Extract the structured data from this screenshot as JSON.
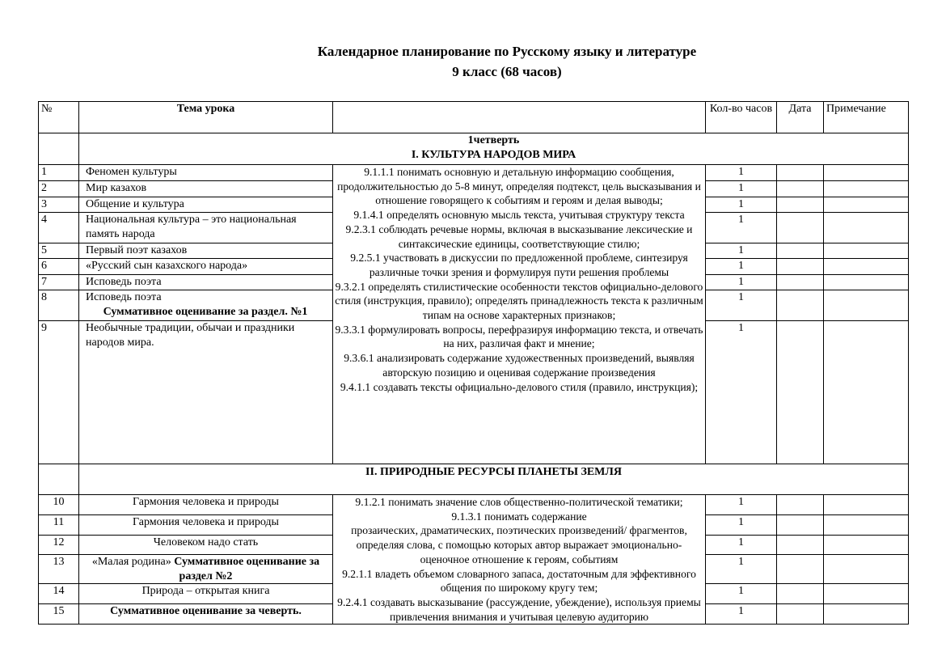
{
  "title_line1": "Календарное планирование по Русскому языку и литературе",
  "title_line2": "9 класс (68 часов)",
  "headers": {
    "num": "№",
    "topic": "Тема урока",
    "objectives": "",
    "hours": "Кол-во часов",
    "date": "Дата",
    "note": "Примечание"
  },
  "quarter1": {
    "label": "1четверть",
    "section": "I. КУЛЬТУРА НАРОДОВ МИРА"
  },
  "section2": "II. ПРИРОДНЫЕ РЕСУРСЫ ПЛАНЕТЫ ЗЕМЛЯ",
  "rows1": [
    {
      "num": "1",
      "topic": "Феномен культуры",
      "hours": "1"
    },
    {
      "num": "2",
      "topic": "Мир казахов",
      "hours": "1"
    },
    {
      "num": "3",
      "topic": "Общение и культура",
      "hours": "1"
    },
    {
      "num": "4",
      "topic": "Национальная культура – это национальная память народа",
      "hours": "1"
    },
    {
      "num": "5",
      "topic": "Первый поэт казахов",
      "hours": "1"
    },
    {
      "num": "6",
      "topic": "«Русский сын казахского народа»",
      "hours": "1"
    },
    {
      "num": "7",
      "topic": "Исповедь поэта",
      "hours": "1"
    },
    {
      "num": "8",
      "topic": "Исповедь поэта",
      "topic_bold": "Суммативное оценивание за раздел. №1",
      "hours": "1"
    },
    {
      "num": "9",
      "topic": "Необычные традиции, обычаи и праздники народов мира.",
      "hours": "1"
    }
  ],
  "objectives1": [
    "9.1.1.1 понимать основную и детальную информацию сообщения, продолжительностью до 5-8 минут, определяя подтекст, цель высказывания и отношение говорящего к событиям и героям и делая выводы;",
    "9.1.4.1  определять основную мысль текста, учитывая структуру текста",
    "9.2.3.1 соблюдать речевые нормы, включая в высказывание лексические и синтаксические единицы, соответствующие стилю;",
    "9.2.5.1  участвовать в дискуссии по предложенной проблеме, синтезируя различные точки зрения и формулируя пути решения проблемы",
    "9.3.2.1 определять стилистические особенности текстов официально-делового стиля (инструкция, правило); определять принадлежность текста к различным типам на основе характерных признаков;",
    "9.3.3.1 формулировать вопросы, перефразируя информацию  текста, и отвечать на них, различая факт и мнение;",
    "9.3.6.1 анализировать содержание художественных произведений, выявляя авторскую позицию и оценивая содержание произведения",
    "9.4.1.1 создавать тексты официально-делового стиля (правило, инструкция);"
  ],
  "rows2": [
    {
      "num": "10",
      "topic": "Гармония человека и природы",
      "hours": "1"
    },
    {
      "num": "11",
      "topic": "Гармония человека и природы",
      "hours": "1"
    },
    {
      "num": "12",
      "topic": "Человеком надо стать",
      "hours": "1"
    },
    {
      "num": "13",
      "topic": "«Малая родина»",
      "topic_bold": "Суммативное оценивание за раздел №2",
      "hours": "1"
    },
    {
      "num": "14",
      "topic": "Природа – открытая книга",
      "hours": "1"
    },
    {
      "num": "15",
      "topic_bold": "Суммативное оценивание за чеверть.",
      "hours": "1"
    }
  ],
  "objectives2": [
    "9.1.2.1 понимать значение слов общественно-политической тематики;",
    "9.1.3.1  понимать содержание",
    "прозаических, драматических, поэтических произведений/ фрагментов, определяя слова, с помощью которых автор выражает эмоционально-оценочное отношение к героям, событиям",
    "9.2.1.1 владеть объемом словарного запаса, достаточным для эффективного общения по широкому кругу тем;",
    "9.2.4.1 создавать высказывание (рассуждение, убеждение), используя приемы привлечения внимания и учитывая целевую аудиторию"
  ]
}
